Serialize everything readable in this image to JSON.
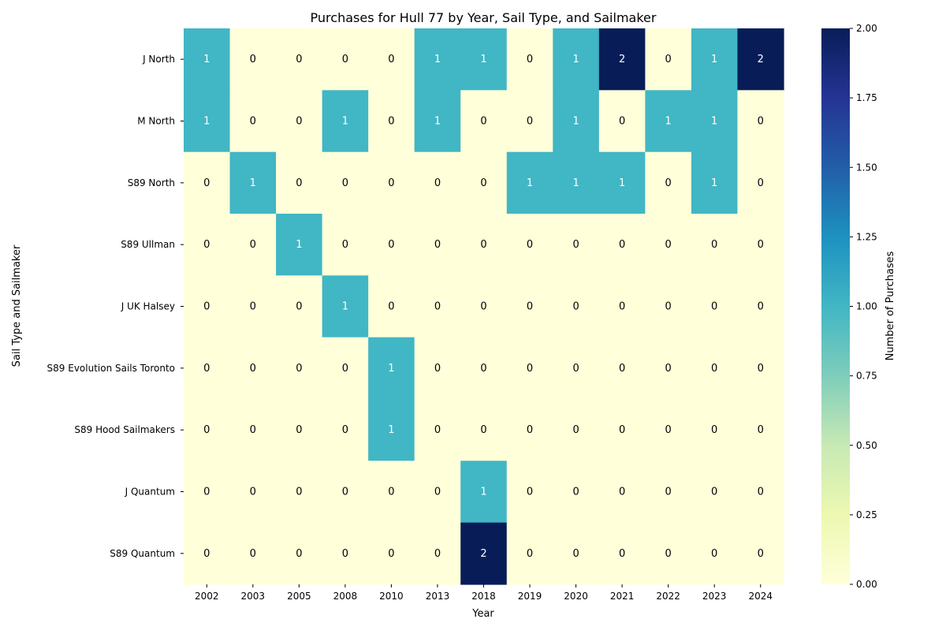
{
  "chart_data": {
    "type": "heatmap",
    "title": "Purchases for Hull 77 by Year, Sail Type, and Sailmaker",
    "xlabel": "Year",
    "ylabel": "Sail Type and Sailmaker",
    "colorbar_label": "Number of Purchases",
    "colormap": "YlGnBu",
    "vmin": 0,
    "vmax": 2,
    "colorbar_ticks": [
      "0.00",
      "0.25",
      "0.50",
      "0.75",
      "1.00",
      "1.25",
      "1.50",
      "1.75",
      "2.00"
    ],
    "x_categories": [
      "2002",
      "2003",
      "2005",
      "2008",
      "2010",
      "2013",
      "2018",
      "2019",
      "2020",
      "2021",
      "2022",
      "2023",
      "2024"
    ],
    "y_categories": [
      "J North",
      "M North",
      "S89 North",
      "S89 Ullman",
      "J UK Halsey",
      "S89 Evolution Sails Toronto",
      "S89 Hood Sailmakers",
      "J Quantum",
      "S89 Quantum"
    ],
    "values": [
      [
        1,
        0,
        0,
        0,
        0,
        1,
        1,
        0,
        1,
        2,
        0,
        1,
        2
      ],
      [
        1,
        0,
        0,
        1,
        0,
        1,
        0,
        0,
        1,
        0,
        1,
        1,
        0
      ],
      [
        0,
        1,
        0,
        0,
        0,
        0,
        0,
        1,
        1,
        1,
        0,
        1,
        0
      ],
      [
        0,
        0,
        1,
        0,
        0,
        0,
        0,
        0,
        0,
        0,
        0,
        0,
        0
      ],
      [
        0,
        0,
        0,
        1,
        0,
        0,
        0,
        0,
        0,
        0,
        0,
        0,
        0
      ],
      [
        0,
        0,
        0,
        0,
        1,
        0,
        0,
        0,
        0,
        0,
        0,
        0,
        0
      ],
      [
        0,
        0,
        0,
        0,
        1,
        0,
        0,
        0,
        0,
        0,
        0,
        0,
        0
      ],
      [
        0,
        0,
        0,
        0,
        0,
        0,
        1,
        0,
        0,
        0,
        0,
        0,
        0
      ],
      [
        0,
        0,
        0,
        0,
        0,
        0,
        2,
        0,
        0,
        0,
        0,
        0,
        0
      ]
    ],
    "cell_colors": {
      "0": "#ffffd9",
      "1": "#41b6c4",
      "2": "#081d58"
    },
    "annotation_colors": {
      "0": "#000000",
      "1": "#ffffff",
      "2": "#ffffff"
    }
  }
}
